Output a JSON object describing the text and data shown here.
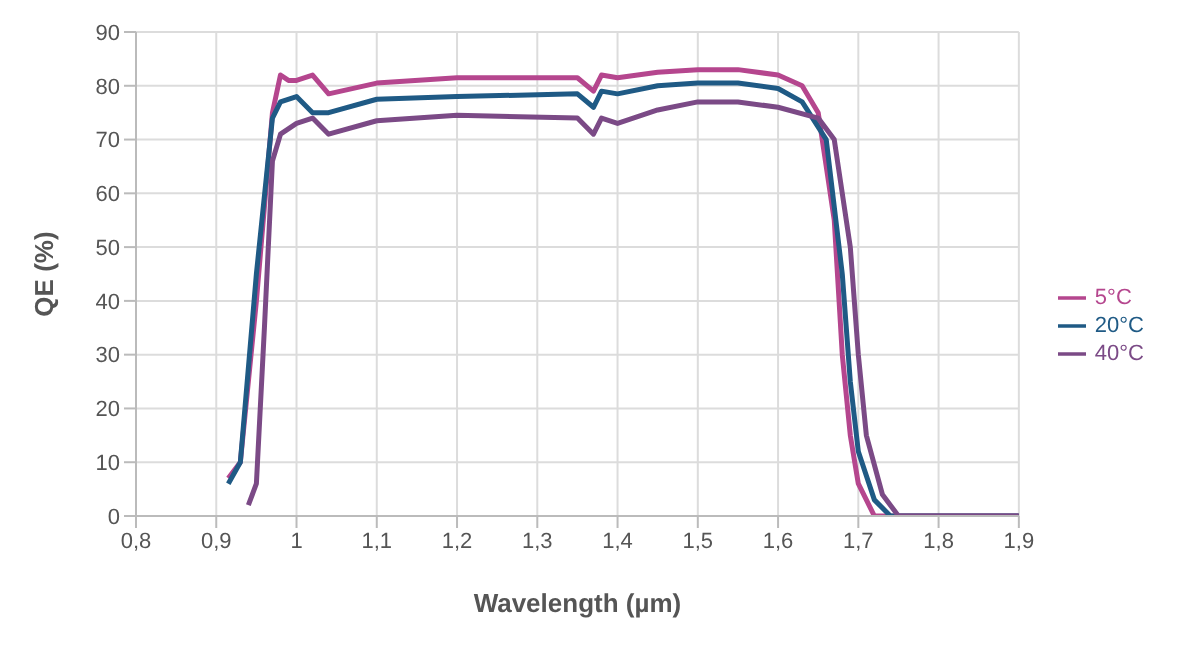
{
  "chart_data": {
    "type": "line",
    "xlabel": "Wavelength (µm)",
    "ylabel": "QE (%)",
    "xlim": [
      0.8,
      1.9
    ],
    "xticks": [
      {
        "value": 0.8,
        "label": "0,8"
      },
      {
        "value": 0.9,
        "label": "0,9"
      },
      1,
      {
        "value": 1.1,
        "label": "1,1"
      },
      {
        "value": 1.2,
        "label": "1,2"
      },
      {
        "value": 1.3,
        "label": "1,3"
      },
      {
        "value": 1.4,
        "label": "1,4"
      },
      {
        "value": 1.5,
        "label": "1,5"
      },
      {
        "value": 1.6,
        "label": "1,6"
      },
      {
        "value": 1.7,
        "label": "1,7"
      },
      {
        "value": 1.8,
        "label": "1,8"
      },
      {
        "value": 1.9,
        "label": "1,9"
      }
    ],
    "ylim": [
      0,
      90
    ],
    "yticks": [
      0,
      10,
      20,
      30,
      40,
      50,
      60,
      70,
      80,
      90
    ],
    "grid": true,
    "legend": "right",
    "marker": "none",
    "line_style": "solid",
    "series": [
      {
        "name": "5°C",
        "color": "#b5468e",
        "x": [
          0.915,
          0.93,
          0.95,
          0.97,
          0.98,
          0.99,
          1.0,
          1.02,
          1.04,
          1.1,
          1.2,
          1.35,
          1.37,
          1.38,
          1.4,
          1.45,
          1.5,
          1.55,
          1.6,
          1.63,
          1.65,
          1.67,
          1.68,
          1.69,
          1.7,
          1.72,
          1.9
        ],
        "values": [
          7,
          10,
          40,
          75,
          82,
          81,
          81,
          82,
          78.5,
          80.5,
          81.5,
          81.5,
          79,
          82,
          81.5,
          82.5,
          83,
          83,
          82,
          80,
          75,
          55,
          30,
          15,
          6,
          0,
          0
        ]
      },
      {
        "name": "20°C",
        "color": "#1f5a85",
        "x": [
          0.915,
          0.93,
          0.95,
          0.97,
          0.98,
          1.0,
          1.02,
          1.04,
          1.1,
          1.2,
          1.35,
          1.37,
          1.38,
          1.4,
          1.45,
          1.5,
          1.55,
          1.6,
          1.63,
          1.66,
          1.68,
          1.69,
          1.7,
          1.72,
          1.74,
          1.9
        ],
        "values": [
          6,
          10,
          45,
          74,
          77,
          78,
          75,
          75,
          77.5,
          78,
          78.5,
          76,
          79,
          78.5,
          80,
          80.5,
          80.5,
          79.5,
          77,
          70,
          45,
          25,
          12,
          3,
          0,
          0
        ]
      },
      {
        "name": "40°C",
        "color": "#7b4a86",
        "x": [
          0.94,
          0.95,
          0.96,
          0.97,
          0.98,
          1.0,
          1.02,
          1.04,
          1.1,
          1.2,
          1.35,
          1.37,
          1.38,
          1.4,
          1.45,
          1.5,
          1.55,
          1.6,
          1.65,
          1.67,
          1.69,
          1.7,
          1.71,
          1.73,
          1.75,
          1.9
        ],
        "values": [
          2,
          6,
          35,
          66,
          71,
          73,
          74,
          71,
          73.5,
          74.5,
          74,
          71,
          74,
          73,
          75.5,
          77,
          77,
          76,
          74,
          70,
          50,
          30,
          15,
          4,
          0,
          0
        ]
      }
    ]
  }
}
